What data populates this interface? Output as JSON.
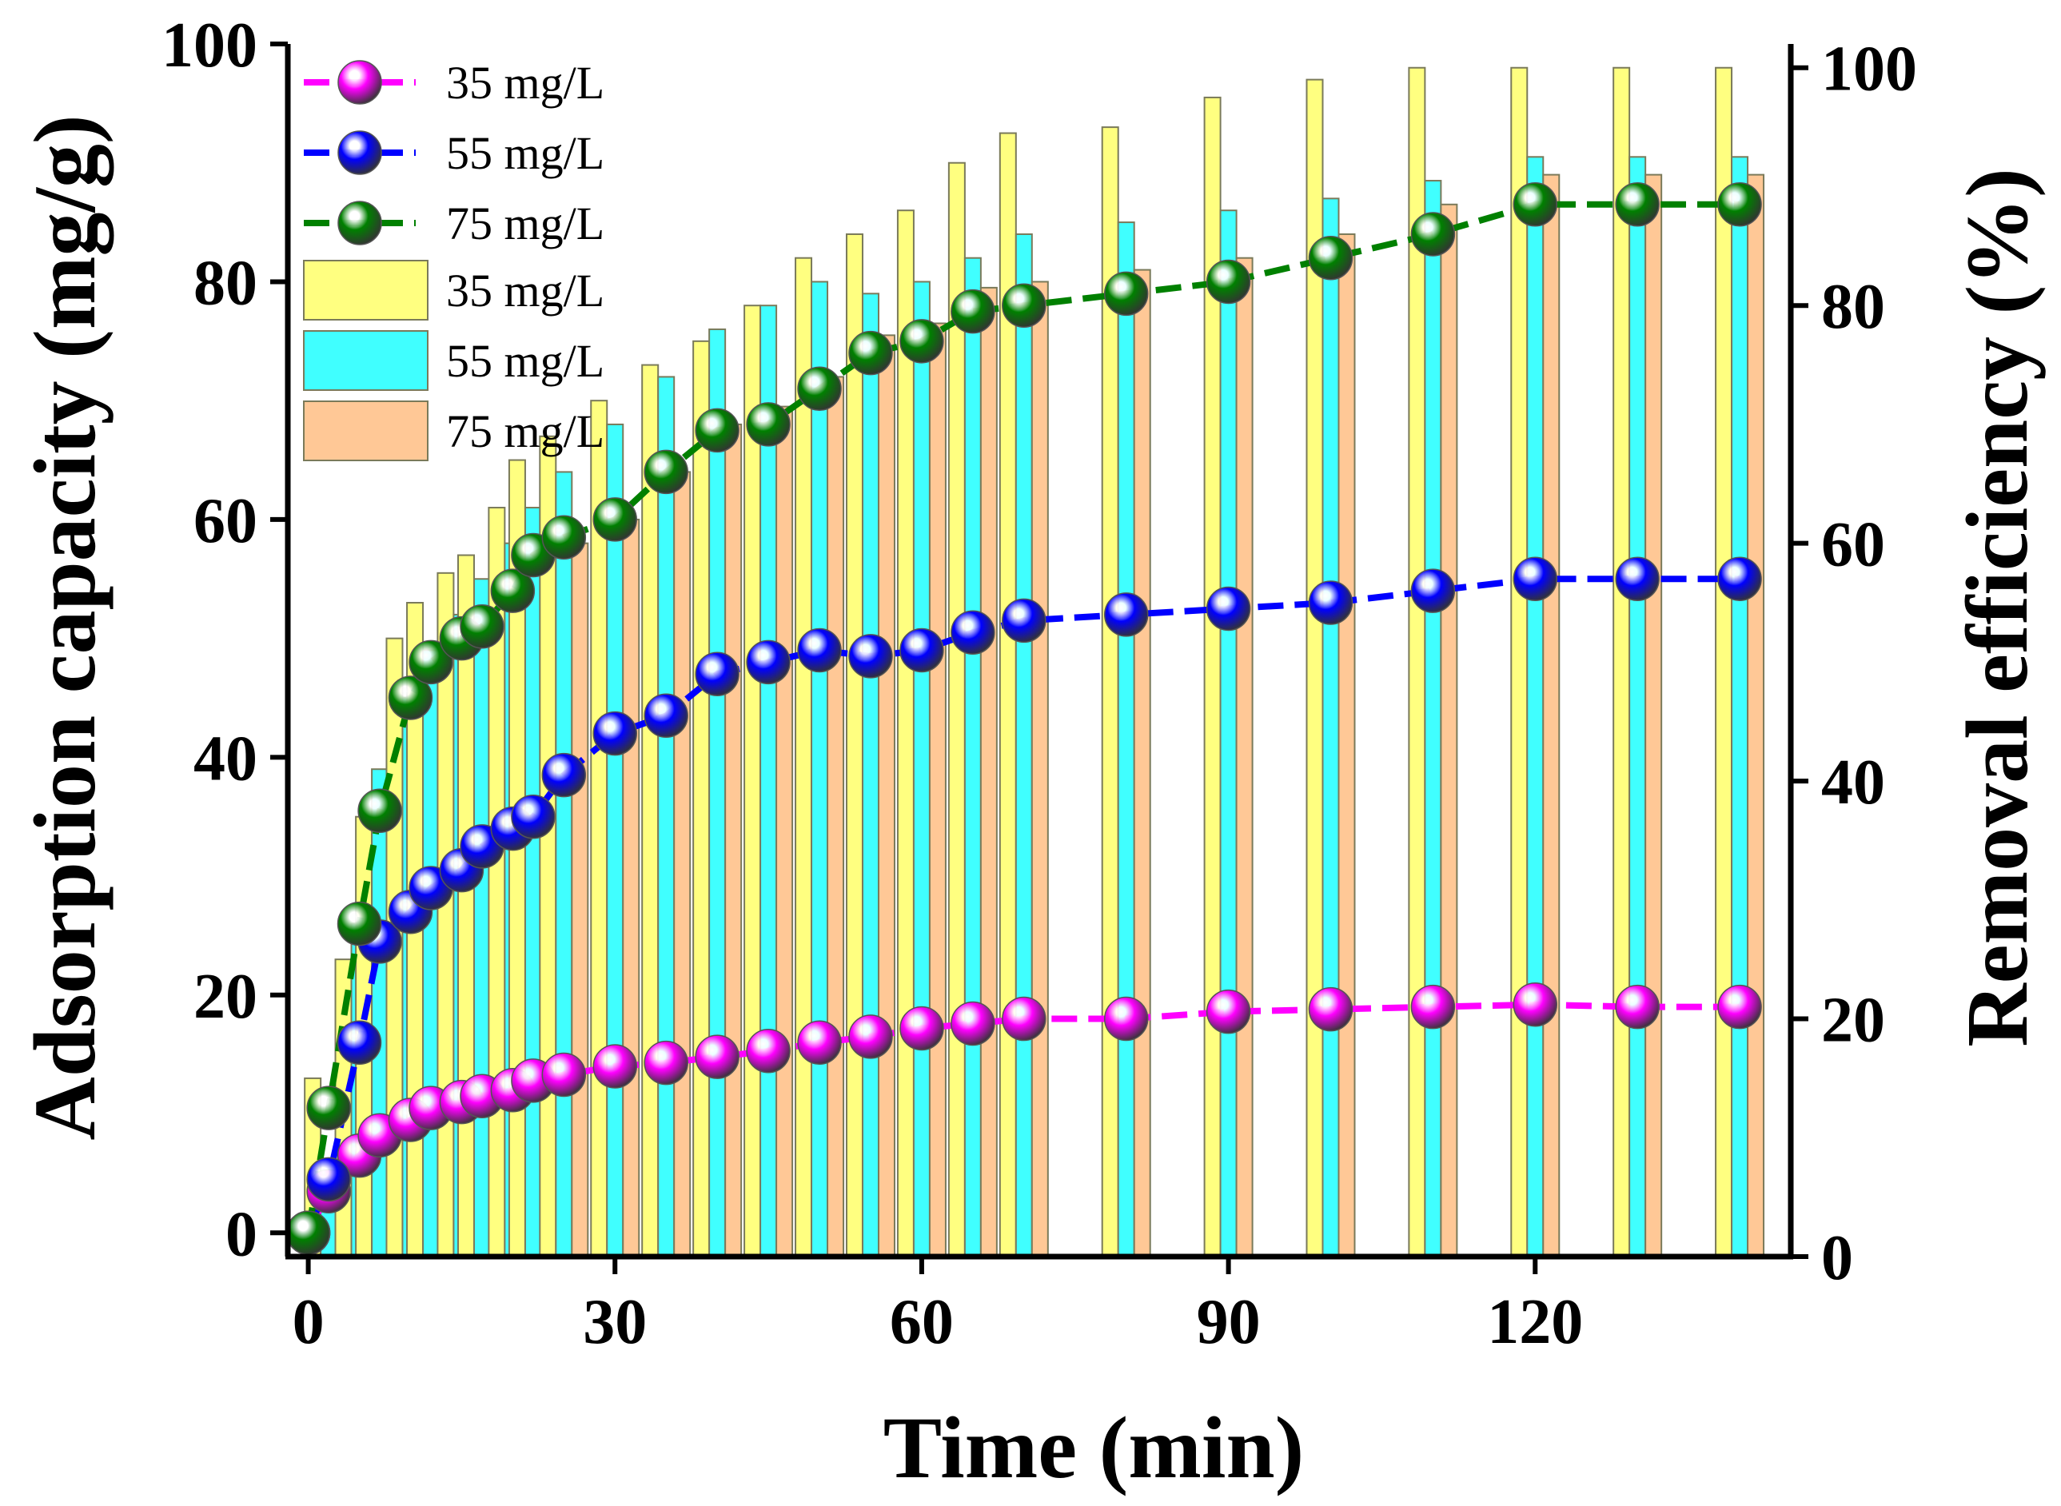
{
  "chart_data": {
    "type": "bar+line",
    "xlabel": "Time (min)",
    "ylabel_left": "Adsorption capacity (mg/g)",
    "ylabel_right": "Removal efficiency (%)",
    "xlim": [
      -2,
      145
    ],
    "ylim_left": [
      -2,
      100
    ],
    "ylim_right": [
      0,
      102
    ],
    "x_ticks": [
      0,
      30,
      60,
      90,
      120
    ],
    "y_left_ticks": [
      0,
      20,
      40,
      60,
      80,
      100
    ],
    "y_right_ticks": [
      0,
      20,
      40,
      60,
      80,
      100
    ],
    "x": [
      0,
      2,
      5,
      7,
      10,
      12,
      15,
      17,
      20,
      22,
      25,
      30,
      35,
      40,
      45,
      50,
      55,
      60,
      65,
      70,
      80,
      90,
      100,
      110,
      120,
      130,
      140
    ],
    "line_series": [
      {
        "name": "35 mg/L",
        "color": "#ff00ff",
        "values": [
          0,
          3.5,
          6.5,
          8.2,
          9.5,
          10.5,
          11.0,
          11.5,
          12.0,
          12.8,
          13.3,
          14.0,
          14.3,
          14.8,
          15.3,
          16.0,
          16.5,
          17.2,
          17.6,
          18.0,
          18.0,
          18.6,
          18.8,
          19.0,
          19.2,
          19.0,
          19.0
        ]
      },
      {
        "name": "55 mg/L",
        "color": "#0000ff",
        "values": [
          0,
          4.5,
          16.0,
          24.5,
          27.0,
          29.0,
          30.5,
          32.5,
          34.0,
          35.0,
          38.5,
          42.0,
          43.5,
          47.0,
          48.0,
          49.0,
          48.5,
          49.0,
          50.5,
          51.5,
          52.0,
          52.5,
          53.0,
          54.0,
          55.0,
          55.0,
          55.0
        ]
      },
      {
        "name": "75 mg/L",
        "color": "#008000",
        "values": [
          0,
          10.5,
          26.0,
          35.5,
          45.0,
          48.0,
          50.0,
          51.0,
          54.0,
          57.0,
          58.5,
          60.0,
          64.0,
          67.5,
          68.0,
          71.0,
          74.0,
          75.0,
          77.5,
          78.0,
          79.0,
          80.0,
          82.0,
          84.0,
          86.5,
          86.5,
          86.5
        ]
      }
    ],
    "bar_series": [
      {
        "name": "35 mg/L",
        "color": "#ffff80",
        "values": [
          0,
          15,
          25,
          37,
          52,
          55,
          57.5,
          59,
          63,
          67,
          69,
          72,
          75,
          77,
          80,
          84,
          86,
          88,
          92,
          94.5,
          95,
          97.5,
          99,
          100,
          100,
          100,
          100
        ]
      },
      {
        "name": "55 mg/L",
        "color": "#40ffff",
        "values": [
          0,
          6,
          28,
          41,
          47,
          51,
          54,
          57,
          60,
          63,
          66,
          70,
          74,
          78,
          80,
          82,
          81,
          82,
          84,
          86,
          87,
          88,
          89,
          90.5,
          92.5,
          92.5,
          92.5
        ]
      },
      {
        "name": "75 mg/L",
        "color": "#ffc896",
        "values": [
          0,
          4,
          10,
          30,
          46,
          48,
          49,
          52,
          55,
          59,
          60,
          62,
          66,
          70,
          71.5,
          74,
          77.5,
          78.5,
          81.5,
          82,
          83,
          84,
          86,
          88.5,
          91,
          91,
          91
        ]
      }
    ],
    "legend": {
      "position": "top-left",
      "entries": [
        "35 mg/L",
        "55 mg/L",
        "75 mg/L",
        "35 mg/L",
        "55 mg/L",
        "75 mg/L"
      ]
    }
  }
}
